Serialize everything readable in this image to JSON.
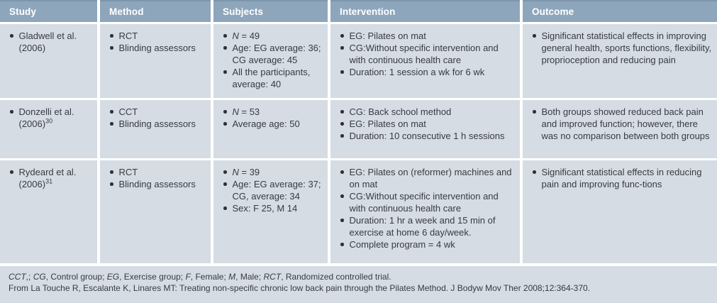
{
  "colors": {
    "header_bg": "#8da6bc",
    "header_top_edge": "#7d96ab",
    "body_bg": "#d5dce3",
    "separator": "#ffffff",
    "text": "#363b43",
    "header_text": "#ffffff"
  },
  "table": {
    "columns": [
      "Study",
      "Method",
      "Subjects",
      "Intervention",
      "Outcome"
    ],
    "rows": [
      {
        "study": [
          "Gladwell et al. (2006)"
        ],
        "method": [
          "RCT",
          "Blinding assessors"
        ],
        "subjects": [
          "*N* = 49",
          "Age: EG average: 36; CG average: 45",
          "All the participants, average: 40"
        ],
        "intervention": [
          "EG: Pilates on mat",
          "CG:Without specific intervention and with continuous health care",
          "Duration: 1 session a wk for 6 wk"
        ],
        "outcome": [
          "Significant statistical effects in improving general health, sports functions, flexibility, proprioception and reducing pain"
        ]
      },
      {
        "study": [
          "Donzelli et al. (2006)^30^"
        ],
        "method": [
          "CCT",
          "Blinding assessors"
        ],
        "subjects": [
          "*N* = 53",
          "Average age: 50"
        ],
        "intervention": [
          "CG: Back school method",
          "EG: Pilates on mat",
          "Duration: 10 consecutive 1 h sessions"
        ],
        "outcome": [
          "Both groups showed reduced back pain and improved function; however, there was no comparison between both groups"
        ]
      },
      {
        "study": [
          "Rydeard et al. (2006)^31^"
        ],
        "method": [
          "RCT",
          "Blinding assessors"
        ],
        "subjects": [
          "*N* = 39",
          "Age: EG average: 37; CG, average: 34",
          "Sex: F 25, M 14"
        ],
        "intervention": [
          "EG: Pilates on (reformer) machines and on mat",
          "CG:Without specific intervention and with continuous health care",
          "Duration: 1 hr a week and 15 min of exercise at home 6 day/week.",
          "Complete program = 4 wk"
        ],
        "outcome": [
          "Significant statistical effects in reducing pain and improving func-tions"
        ]
      }
    ],
    "footnotes": {
      "abbreviations": "*CCT*,; *CG*, Control group; *EG*, Exercise group; *F*, Female; *M*, Male; *RCT*, Randomized controlled trial.",
      "source": "From La Touche R, Escalante K, Linares MT: Treating non-specific chronic low back pain through the Pilates Method. J Bodyw Mov Ther 2008;12:364-370."
    }
  }
}
